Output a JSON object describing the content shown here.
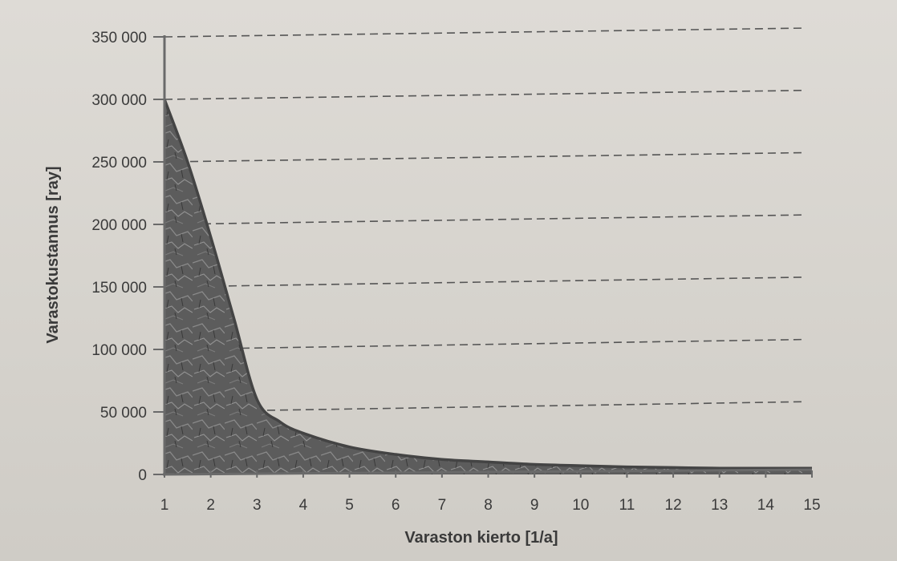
{
  "chart_data": {
    "type": "area",
    "title": "",
    "xlabel": "Varaston kierto [1/a]",
    "ylabel": "Varastokustannus [ray]",
    "x": [
      1,
      1.5,
      2,
      2.5,
      3,
      3.5,
      4,
      5,
      6,
      7,
      8,
      9,
      10,
      11,
      12,
      13,
      14,
      15
    ],
    "series": [
      {
        "values": [
          300000,
          250000,
          190000,
          125000,
          60000,
          42000,
          33000,
          22000,
          16000,
          12000,
          10000,
          8000,
          7000,
          6000,
          5500,
          5000,
          5000,
          5000
        ]
      }
    ],
    "xlim": [
      1,
      15
    ],
    "ylim": [
      0,
      350000
    ],
    "x_ticks": [
      "1",
      "2",
      "3",
      "4",
      "5",
      "6",
      "7",
      "8",
      "9",
      "10",
      "11",
      "12",
      "13",
      "14",
      "15"
    ],
    "y_ticks": [
      "0",
      "50 000",
      "100 000",
      "150 000",
      "200 000",
      "250 000",
      "300 000",
      "350 000"
    ],
    "y_tick_values": [
      0,
      50000,
      100000,
      150000,
      200000,
      250000,
      300000,
      350000
    ],
    "grid": true,
    "fill_color": "#5a5a5a",
    "line_color": "#444444"
  }
}
